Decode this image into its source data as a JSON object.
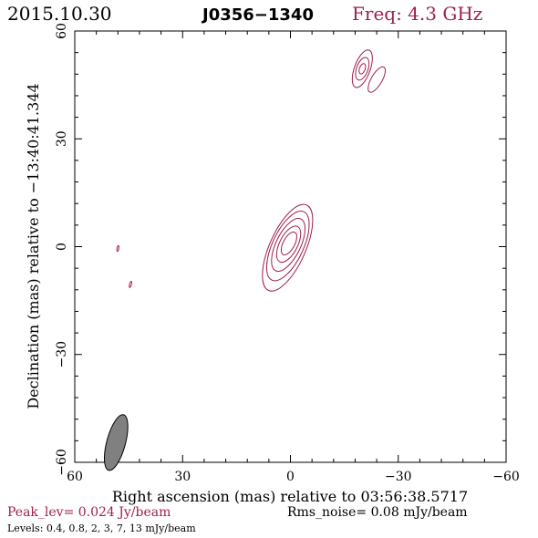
{
  "header": {
    "date": "2015.10.30",
    "source": "J0356−1340",
    "freq": "Freq: 4.3 GHz"
  },
  "chart_data": {
    "type": "contour",
    "xlabel": "Right ascension (mas) relative to 03:56:38.5717",
    "ylabel": "Declination (mas) relative to −13:40:41.344",
    "xlim": [
      60,
      -60
    ],
    "ylim": [
      -60,
      60
    ],
    "x_ticks": [
      60,
      30,
      0,
      -30,
      -60
    ],
    "y_ticks": [
      -60,
      -30,
      0,
      30,
      60
    ],
    "x_tick_labels": [
      "60",
      "30",
      "0",
      "−30",
      "−60"
    ],
    "y_tick_labels": [
      "−60",
      "−30",
      "0",
      "30",
      "60"
    ],
    "contour_color": "#a0204a",
    "beam": {
      "x": 48.5,
      "y": -54.5,
      "major": 8.0,
      "minor": 2.6,
      "pa_deg": 15,
      "color": "#808080"
    },
    "components": [
      {
        "name": "core",
        "x": 0.5,
        "y": 0.5,
        "contours": [
          {
            "a": 13.0,
            "b": 5.0,
            "angle": 24,
            "dx": 0.3,
            "dy": -0.8
          },
          {
            "a": 10.5,
            "b": 4.3,
            "angle": 25,
            "dx": 0.2,
            "dy": -0.3
          },
          {
            "a": 8.0,
            "b": 3.4,
            "angle": 26,
            "dx": 0.1,
            "dy": 0.0
          },
          {
            "a": 5.5,
            "b": 2.5,
            "angle": 27,
            "dx": 0.0,
            "dy": 0.2
          },
          {
            "a": 3.5,
            "b": 1.6,
            "angle": 28,
            "dx": -0.1,
            "dy": 0.4
          }
        ]
      },
      {
        "name": "north-knot",
        "x": -20.0,
        "y": 49.5,
        "contours": [
          {
            "a": 5.5,
            "b": 2.2,
            "angle": 20,
            "dx": 0,
            "dy": 0
          },
          {
            "a": 3.3,
            "b": 1.6,
            "angle": 20,
            "dx": 0,
            "dy": 0
          },
          {
            "a": 1.5,
            "b": 0.8,
            "angle": 20,
            "dx": 0,
            "dy": 0
          }
        ]
      },
      {
        "name": "north-knot-2",
        "x": -24.0,
        "y": 46.5,
        "contours": [
          {
            "a": 4.0,
            "b": 1.5,
            "angle": 30,
            "dx": 0,
            "dy": 0
          }
        ]
      },
      {
        "name": "speck-1",
        "x": 48.0,
        "y": -0.5,
        "contours": [
          {
            "a": 0.8,
            "b": 0.25,
            "angle": 10,
            "dx": 0,
            "dy": 0
          }
        ]
      },
      {
        "name": "speck-2",
        "x": 44.5,
        "y": -10.5,
        "contours": [
          {
            "a": 0.9,
            "b": 0.25,
            "angle": 15,
            "dx": 0,
            "dy": 0
          }
        ]
      }
    ]
  },
  "footer": {
    "peak": "Peak_lev=  0.024 Jy/beam",
    "rms": "Rms_noise= 0.08 mJy/beam",
    "levels": "Levels: 0.4, 0.8,    2,    3,    7,   13 mJy/beam"
  }
}
